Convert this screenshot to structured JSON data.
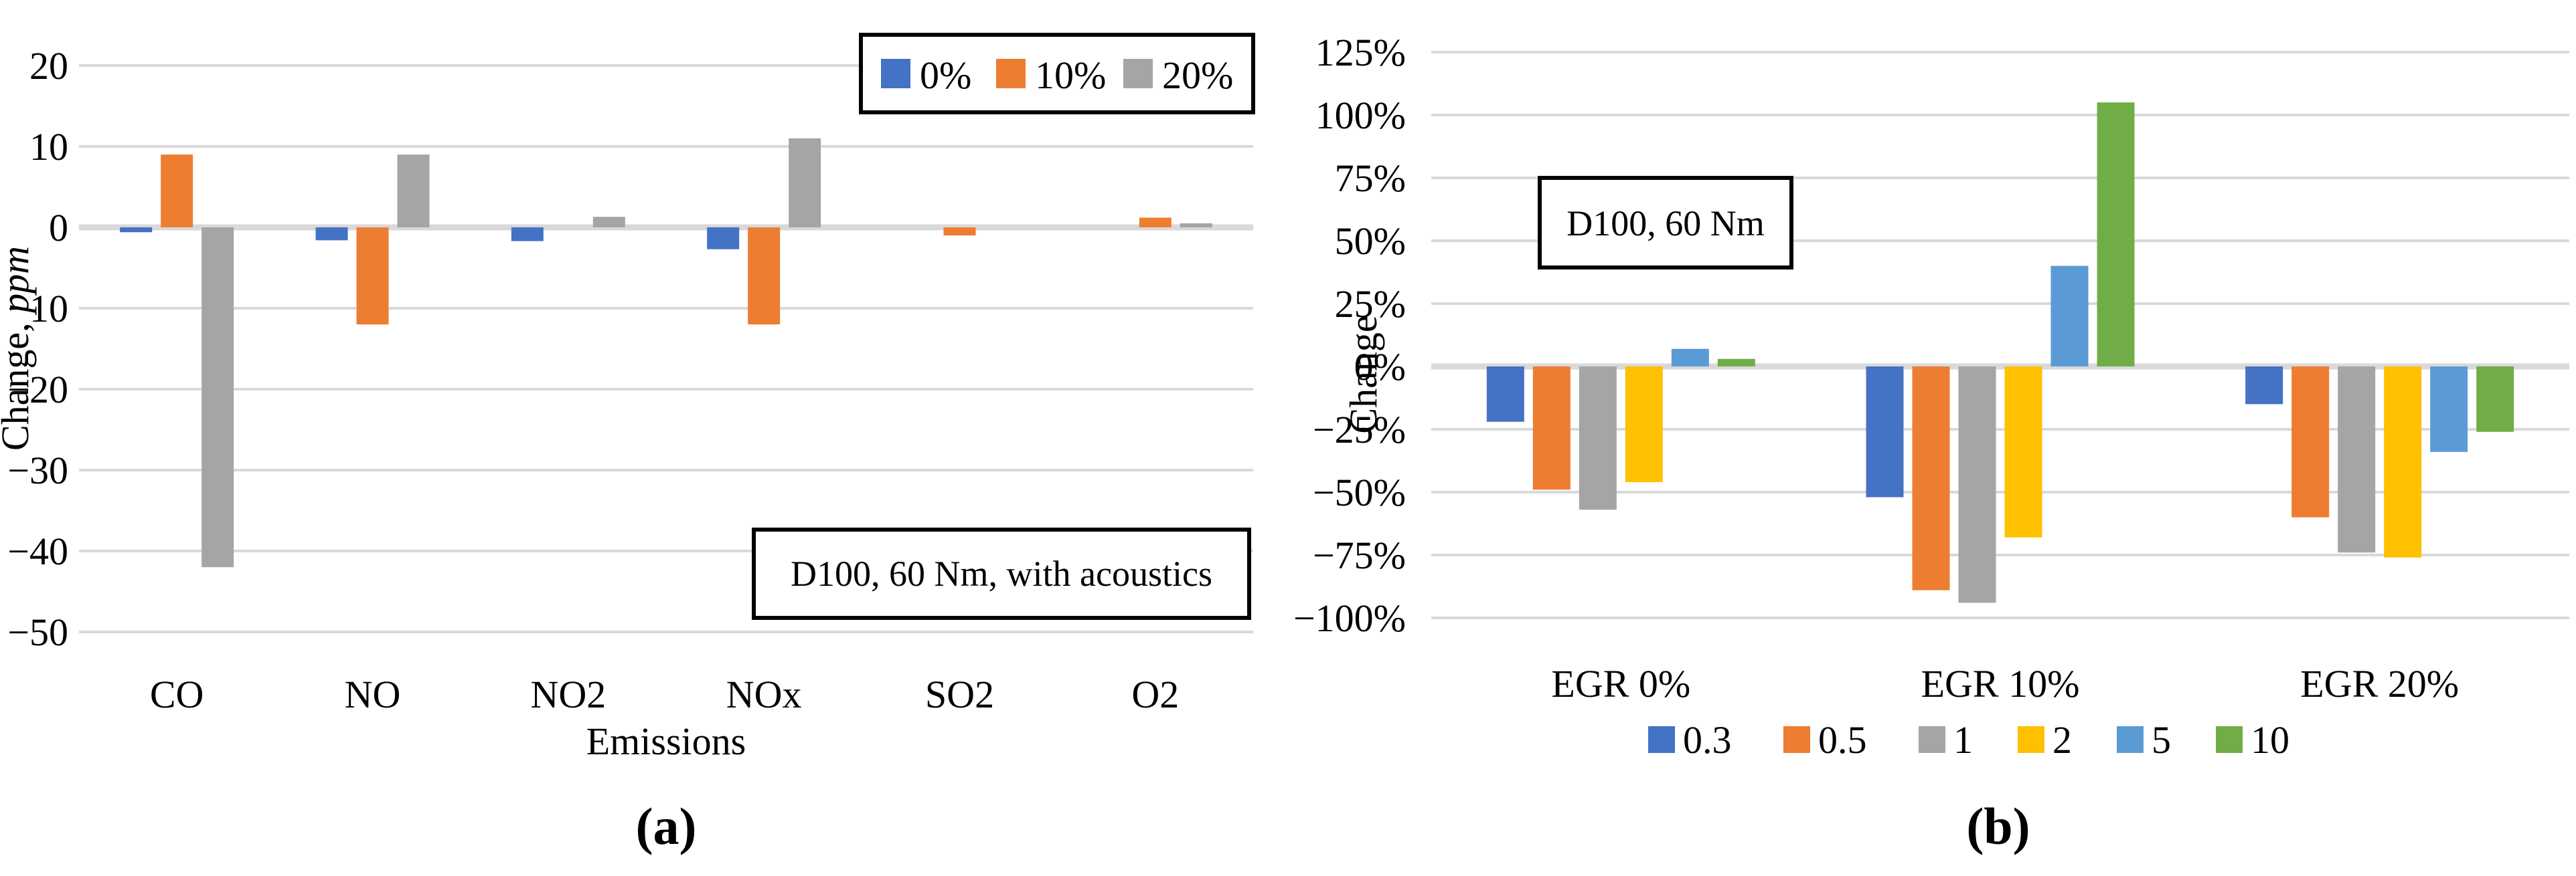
{
  "figure": {
    "background": "#FFFFFF",
    "colors": {
      "gridline": "#D9D9D9",
      "zero_axis": "#D9D9D9",
      "text": "#000000",
      "box_border": "#000000",
      "box_fill": "#FFFFFF"
    }
  },
  "chart_data": [
    {
      "id": "a",
      "type": "bar",
      "caption": "(a)",
      "annotation": "D100, 60 Nm, with acoustics",
      "xlabel": "Emissions",
      "ylabel_parts": [
        {
          "text": "Change, ",
          "italic": false
        },
        {
          "text": "ppm",
          "italic": true
        }
      ],
      "categories": [
        "CO",
        "NO",
        "NO2",
        "NOx",
        "SO2",
        "O2"
      ],
      "series": [
        {
          "name": "0%",
          "color": "#4472C4",
          "values": [
            -0.6,
            -1.6,
            -1.7,
            -2.7,
            0,
            0
          ]
        },
        {
          "name": "10%",
          "color": "#ED7D31",
          "values": [
            9,
            -12,
            0,
            -12,
            -1,
            1.2
          ]
        },
        {
          "name": "20%",
          "color": "#A5A5A5",
          "values": [
            -42,
            9,
            1.3,
            11,
            0,
            0.5
          ]
        }
      ],
      "ylim": [
        -50,
        20
      ],
      "grid": true,
      "legend_position": "top-right-box",
      "yticks": [
        {
          "value": 20,
          "label": "20"
        },
        {
          "value": 10,
          "label": "10"
        },
        {
          "value": 0,
          "label": "0"
        },
        {
          "value": -10,
          "label": "−10"
        },
        {
          "value": -20,
          "label": "−20"
        },
        {
          "value": -30,
          "label": "−30"
        },
        {
          "value": -40,
          "label": "−40"
        },
        {
          "value": -50,
          "label": "−50"
        }
      ]
    },
    {
      "id": "b",
      "type": "bar",
      "caption": "(b)",
      "annotation": "D100, 60 Nm",
      "xlabel": "",
      "ylabel_parts": [
        {
          "text": "Change",
          "italic": false
        }
      ],
      "categories": [
        "EGR 0%",
        "EGR 10%",
        "EGR 20%"
      ],
      "series": [
        {
          "name": "0.3",
          "color": "#4472C4",
          "values": [
            -22,
            -52,
            -15
          ]
        },
        {
          "name": "0.5",
          "color": "#ED7D31",
          "values": [
            -49,
            -89,
            -60
          ]
        },
        {
          "name": "1",
          "color": "#A5A5A5",
          "values": [
            -57,
            -94,
            -74
          ]
        },
        {
          "name": "2",
          "color": "#FFC000",
          "values": [
            -46,
            -68,
            -76
          ]
        },
        {
          "name": "5",
          "color": "#5B9BD5",
          "values": [
            7,
            40,
            -34
          ]
        },
        {
          "name": "10",
          "color": "#70AD47",
          "values": [
            3,
            105,
            -26
          ]
        }
      ],
      "ylim": [
        -100,
        125
      ],
      "grid": true,
      "legend_position": "bottom",
      "yticks": [
        {
          "value": 125,
          "label": "125%"
        },
        {
          "value": 100,
          "label": "100%"
        },
        {
          "value": 75,
          "label": "75%"
        },
        {
          "value": 50,
          "label": "50%"
        },
        {
          "value": 25,
          "label": "25%"
        },
        {
          "value": 0,
          "label": "0%"
        },
        {
          "value": -25,
          "label": "−25%"
        },
        {
          "value": -50,
          "label": "−50%"
        },
        {
          "value": -75,
          "label": "−75%"
        },
        {
          "value": -100,
          "label": "−100%"
        }
      ]
    }
  ]
}
